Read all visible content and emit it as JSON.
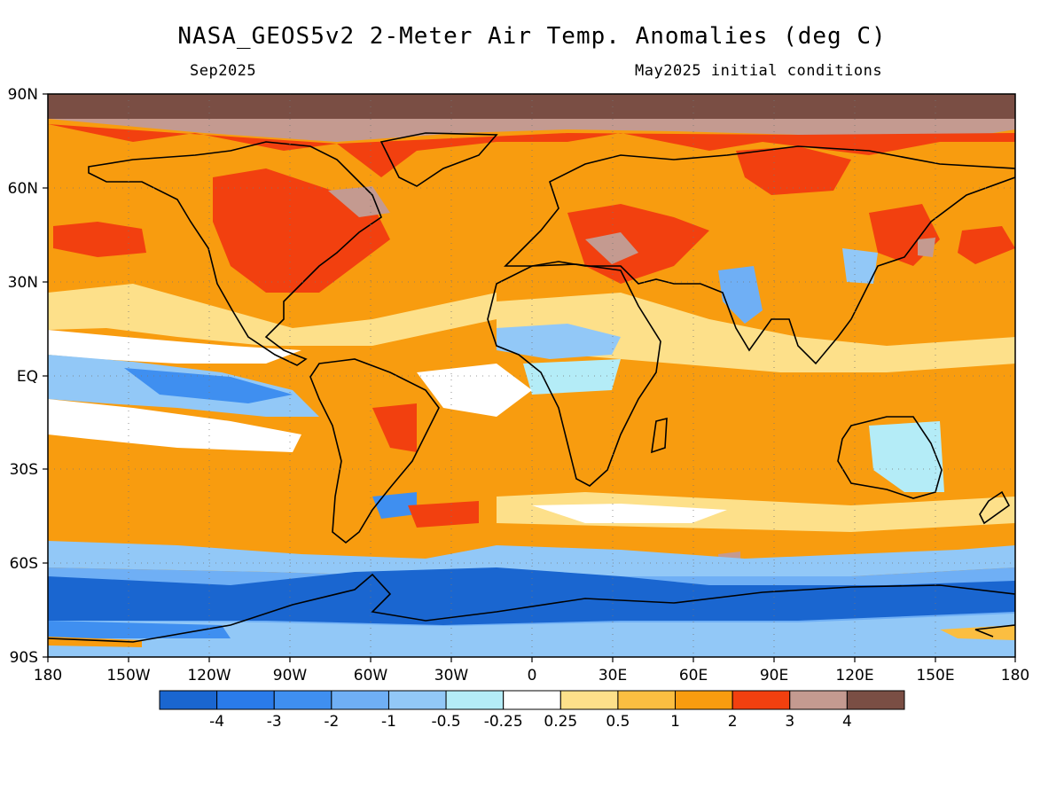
{
  "title": "NASA_GEOS5v2 2-Meter Air Temp. Anomalies (deg C)",
  "subtitle_left": "Sep2025",
  "subtitle_right": "May2025 initial conditions",
  "lat_labels": [
    "90N",
    "60N",
    "30N",
    "EQ",
    "30S",
    "60S",
    "90S"
  ],
  "lon_labels": [
    "180",
    "150W",
    "120W",
    "90W",
    "60W",
    "30W",
    "0",
    "30E",
    "60E",
    "90E",
    "120E",
    "150E",
    "180"
  ],
  "colorbar": {
    "colors": [
      "#1a66d0",
      "#2a7bea",
      "#3f8ff0",
      "#6faff5",
      "#92c8f7",
      "#b4ecf7",
      "#ffffff",
      "#fde08a",
      "#fbbe41",
      "#f89c0f",
      "#f2400f",
      "#c49a90",
      "#7a4e44"
    ],
    "labels": [
      "-4",
      "-3",
      "-2",
      "-1",
      "-0.5",
      "-0.25",
      "0.25",
      "0.5",
      "1",
      "2",
      "3",
      "4"
    ]
  }
}
